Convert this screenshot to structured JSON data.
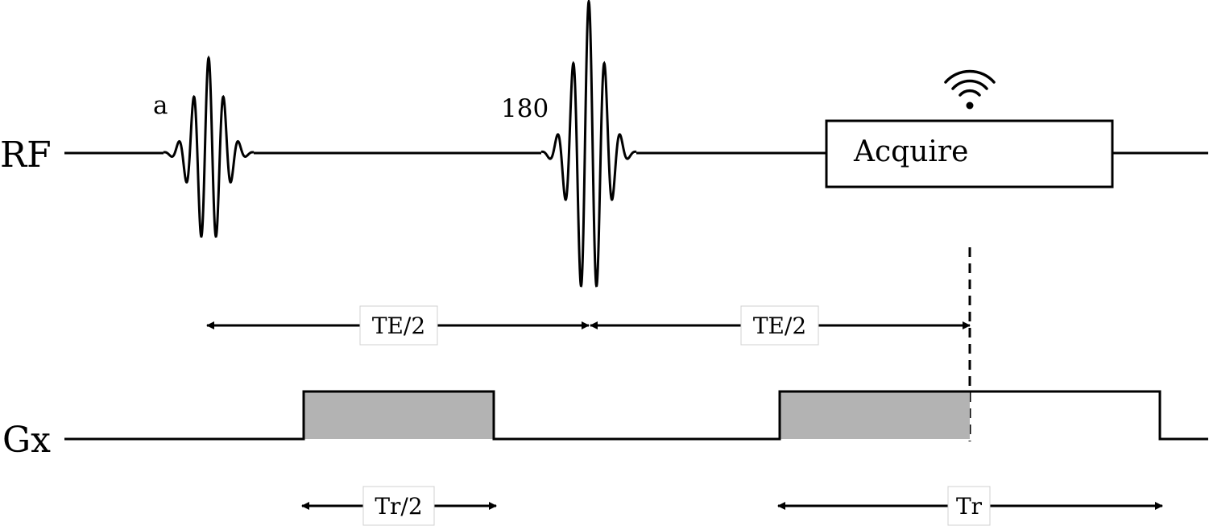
{
  "diagram": {
    "rows": {
      "rf": "RF",
      "gx": "Gx"
    },
    "pulses": {
      "excitation": "a",
      "refocusing": "180"
    },
    "acquire_label": "Acquire",
    "signal_icon": "wifi-signal-icon",
    "intervals": {
      "te_first": "TE/2",
      "te_second": "TE/2",
      "tr_half": "Tr/2",
      "tr_full": "Tr"
    },
    "colors": {
      "line": "#000000",
      "gradient_fill": "#b3b3b3",
      "background": "#ffffff"
    }
  }
}
